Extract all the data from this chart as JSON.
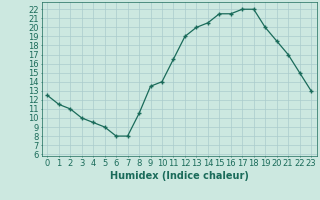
{
  "x": [
    0,
    1,
    2,
    3,
    4,
    5,
    6,
    7,
    8,
    9,
    10,
    11,
    12,
    13,
    14,
    15,
    16,
    17,
    18,
    19,
    20,
    21,
    22,
    23
  ],
  "y": [
    12.5,
    11.5,
    11.0,
    10.0,
    9.5,
    9.0,
    8.0,
    8.0,
    10.5,
    13.5,
    14.0,
    16.5,
    19.0,
    20.0,
    20.5,
    21.5,
    21.5,
    22.0,
    22.0,
    20.0,
    18.5,
    17.0,
    15.0,
    13.0
  ],
  "line_color": "#1a6b5a",
  "marker": "+",
  "marker_size": 3,
  "marker_linewidth": 1.0,
  "bg_color": "#cce8e0",
  "grid_color": "#aacccc",
  "xlabel": "Humidex (Indice chaleur)",
  "xlabel_fontsize": 7,
  "ylabel_ticks": [
    6,
    7,
    8,
    9,
    10,
    11,
    12,
    13,
    14,
    15,
    16,
    17,
    18,
    19,
    20,
    21,
    22
  ],
  "xlim": [
    -0.5,
    23.5
  ],
  "ylim": [
    5.8,
    22.8
  ],
  "tick_fontsize": 6,
  "linewidth": 0.9
}
